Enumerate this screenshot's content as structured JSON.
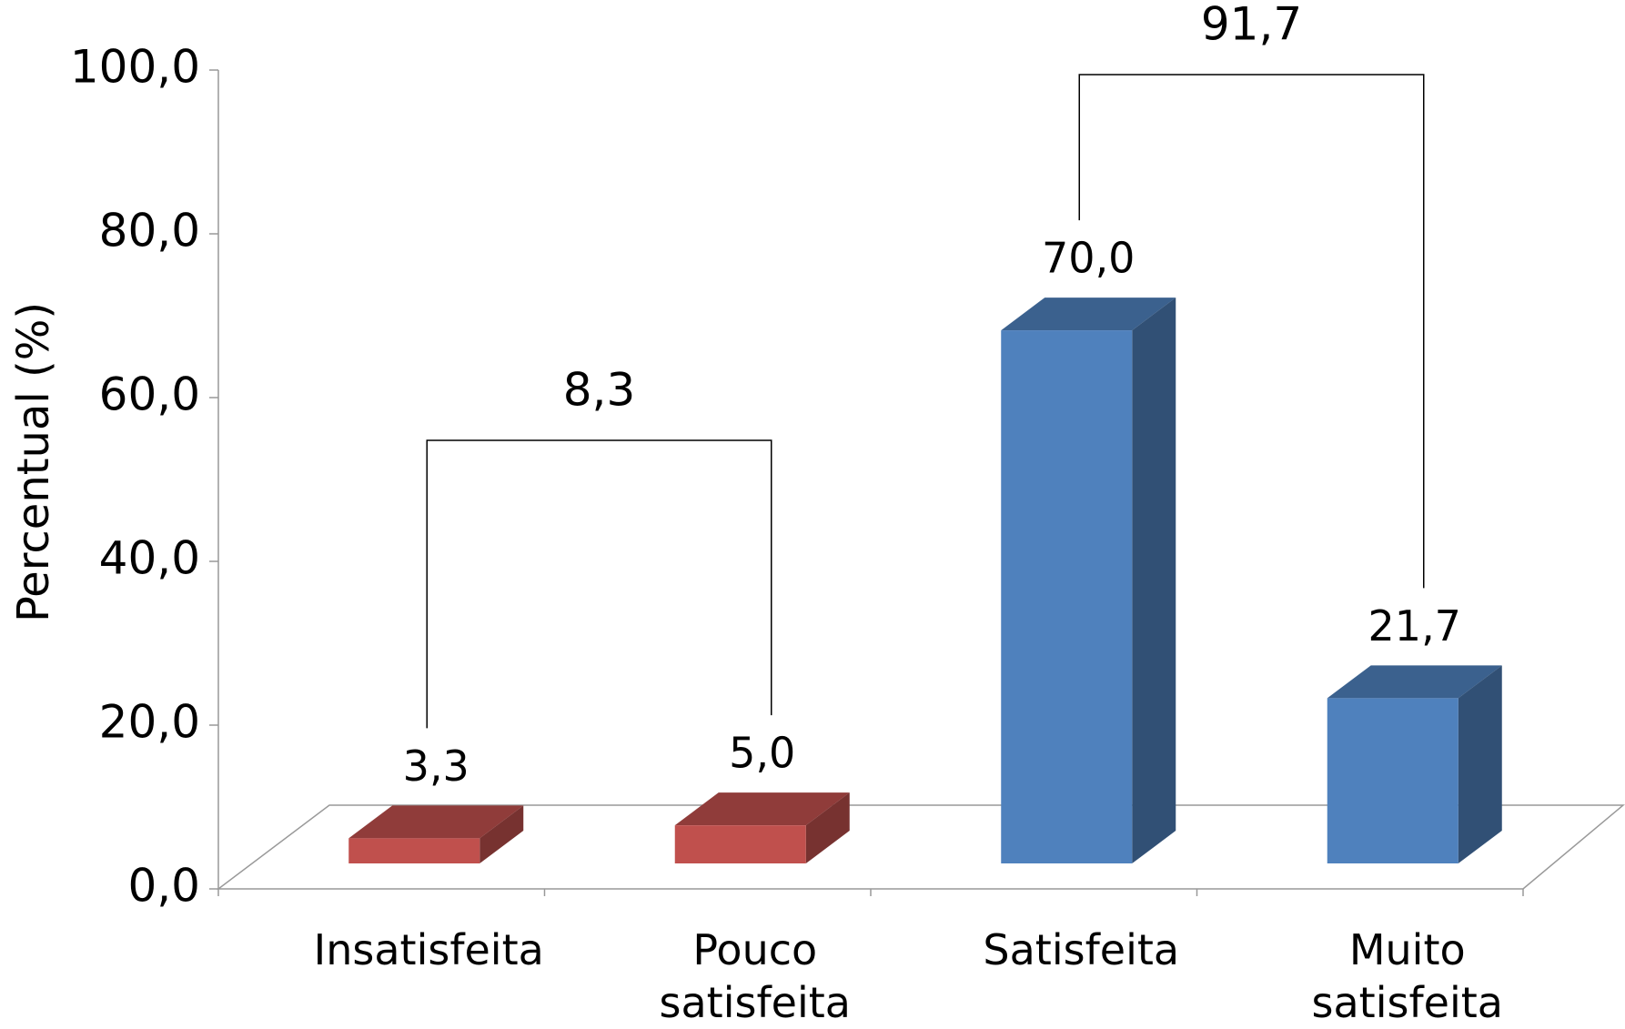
{
  "chart_data": {
    "type": "bar3d",
    "y_label": "Percentual (%)",
    "categories": [
      "Insatisfeita",
      "Pouco satisfeita",
      "Satisfeita",
      "Muito satisfeita"
    ],
    "values": [
      3.3,
      5.0,
      70.0,
      21.7
    ],
    "value_labels": [
      "3,3",
      "5,0",
      "70,0",
      "21,7"
    ],
    "colors": [
      "#c0504d",
      "#c0504d",
      "#4f81bd",
      "#4f81bd"
    ],
    "ylim": [
      0,
      100
    ],
    "yticks": [
      {
        "value": 0,
        "label": "0,0"
      },
      {
        "value": 20,
        "label": "20,0"
      },
      {
        "value": 40,
        "label": "40,0"
      },
      {
        "value": 60,
        "label": "60,0"
      },
      {
        "value": 80,
        "label": "80,0"
      },
      {
        "value": 100,
        "label": "100,0"
      }
    ],
    "annotations": [
      {
        "value": 8.3,
        "label": "8,3"
      },
      {
        "value": 91.7,
        "label": "91,7"
      }
    ]
  }
}
